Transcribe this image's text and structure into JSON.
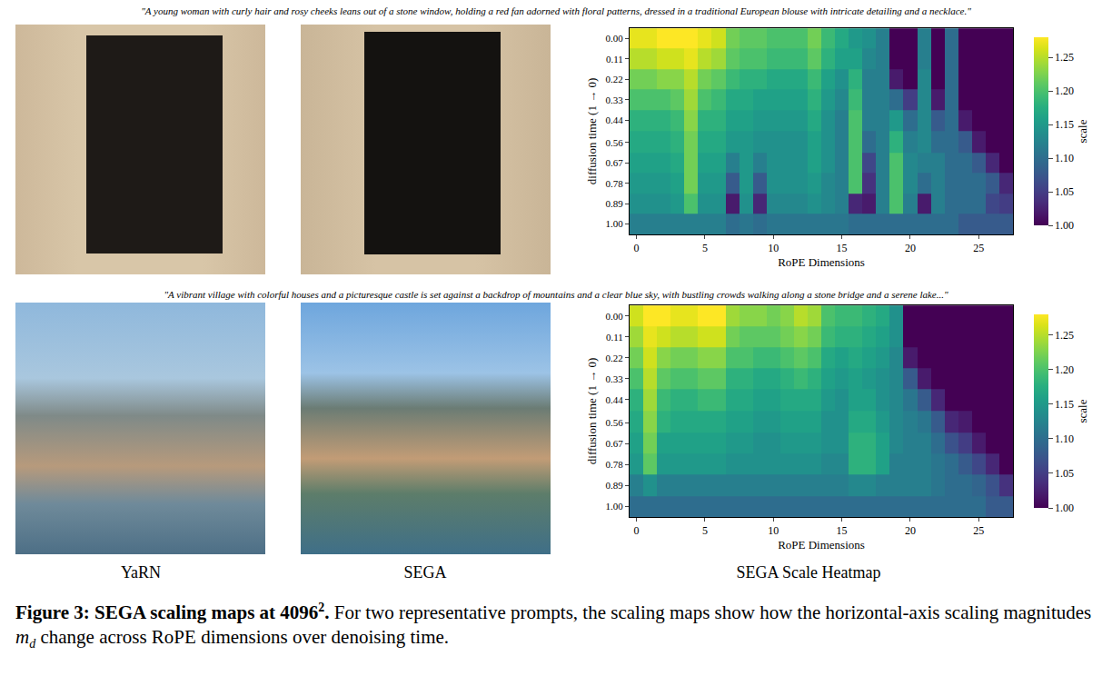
{
  "prompts": [
    "\"A young woman with curly hair and rosy cheeks leans out of a stone window, holding a red fan adorned with floral patterns, dressed in a traditional European blouse with intricate detailing and a necklace.\"",
    "\"A vibrant village with colorful houses and a picturesque castle is set against a backdrop of mountains and a clear blue sky, with bustling crowds walking along a stone bridge and a serene lake...\""
  ],
  "panel_labels": [
    "YaRN",
    "SEGA",
    "SEGA Scale Heatmap"
  ],
  "caption": {
    "label": "Figure 3:",
    "bold": "SEGA scaling maps at 4096",
    "bold_sup": "2",
    "bold_end": ".",
    "text_before": "For two representative prompts, the scaling maps show how the horizontal-axis scaling magnitudes",
    "math": "m",
    "math_sub": "d",
    "text_after": "change across RoPE dimensions over denoising time."
  },
  "chart_data": [
    {
      "type": "heatmap",
      "color": "Viridis",
      "xlabel": "RoPE Dimensions",
      "ylabel": "diffusion time (1 → 0)",
      "x": [
        0,
        1,
        2,
        3,
        4,
        5,
        6,
        7,
        8,
        9,
        10,
        11,
        12,
        13,
        14,
        15,
        16,
        17,
        18,
        19,
        20,
        21,
        22,
        23,
        24,
        25,
        26,
        27
      ],
      "y": [
        0,
        0.11,
        0.22,
        0.33,
        0.44,
        0.56,
        0.67,
        0.78,
        0.89,
        1
      ],
      "xlim": [
        -0.5,
        27.5
      ],
      "ylim": [
        1.056,
        -0.056
      ],
      "xticks": [
        0,
        5,
        10,
        15,
        20,
        25
      ],
      "yticks": [
        {
          "value": 0,
          "label": "0.00"
        },
        0.11,
        0.22,
        0.33,
        0.44,
        0.56,
        0.67,
        0.78,
        0.89,
        {
          "value": 1,
          "label": "1.00"
        }
      ],
      "zlim": [
        1.0,
        1.28
      ],
      "zticks": [
        {
          "value": 1,
          "label": "1.00"
        },
        1.05,
        {
          "value": 1.1,
          "label": "1.10"
        },
        1.15,
        {
          "value": 1.2,
          "label": "1.20"
        },
        1.25
      ],
      "colorbar_title": "scale",
      "values": [
        [
          1.27,
          1.27,
          1.28,
          1.28,
          1.28,
          1.27,
          1.26,
          1.22,
          1.21,
          1.21,
          1.2,
          1.2,
          1.2,
          1.22,
          1.19,
          1.17,
          1.15,
          1.14,
          1.12,
          1.0,
          1.0,
          1.12,
          1.0,
          1.1,
          1.0,
          1.0,
          1.0,
          1.0
        ],
        [
          1.25,
          1.25,
          1.26,
          1.26,
          1.27,
          1.25,
          1.24,
          1.21,
          1.2,
          1.2,
          1.19,
          1.19,
          1.19,
          1.21,
          1.18,
          1.16,
          1.16,
          1.13,
          1.12,
          1.0,
          1.0,
          1.12,
          1.0,
          1.1,
          1.0,
          1.0,
          1.0,
          1.0
        ],
        [
          1.22,
          1.22,
          1.23,
          1.23,
          1.25,
          1.22,
          1.21,
          1.19,
          1.18,
          1.18,
          1.17,
          1.17,
          1.17,
          1.19,
          1.16,
          1.14,
          1.18,
          1.12,
          1.12,
          1.02,
          1.0,
          1.13,
          1.0,
          1.1,
          1.0,
          1.0,
          1.0,
          1.0
        ],
        [
          1.2,
          1.2,
          1.2,
          1.21,
          1.24,
          1.2,
          1.19,
          1.17,
          1.17,
          1.16,
          1.16,
          1.16,
          1.16,
          1.18,
          1.15,
          1.13,
          1.19,
          1.12,
          1.12,
          1.1,
          1.05,
          1.13,
          1.02,
          1.1,
          1.0,
          1.0,
          1.0,
          1.0
        ],
        [
          1.18,
          1.18,
          1.18,
          1.19,
          1.23,
          1.18,
          1.18,
          1.16,
          1.16,
          1.15,
          1.15,
          1.15,
          1.15,
          1.17,
          1.14,
          1.12,
          1.2,
          1.12,
          1.12,
          1.15,
          1.1,
          1.13,
          1.08,
          1.1,
          1.02,
          1.0,
          1.0,
          1.0
        ],
        [
          1.17,
          1.17,
          1.17,
          1.18,
          1.22,
          1.17,
          1.17,
          1.15,
          1.15,
          1.14,
          1.14,
          1.14,
          1.14,
          1.16,
          1.14,
          1.12,
          1.2,
          1.1,
          1.12,
          1.18,
          1.12,
          1.13,
          1.1,
          1.1,
          1.08,
          1.02,
          1.0,
          1.0
        ],
        [
          1.16,
          1.16,
          1.16,
          1.17,
          1.22,
          1.16,
          1.16,
          1.12,
          1.15,
          1.12,
          1.14,
          1.14,
          1.14,
          1.16,
          1.14,
          1.12,
          1.2,
          1.06,
          1.12,
          1.2,
          1.13,
          1.12,
          1.12,
          1.1,
          1.1,
          1.08,
          1.03,
          1.0
        ],
        [
          1.15,
          1.15,
          1.15,
          1.16,
          1.22,
          1.15,
          1.15,
          1.08,
          1.15,
          1.08,
          1.14,
          1.14,
          1.14,
          1.15,
          1.13,
          1.12,
          1.2,
          1.04,
          1.12,
          1.2,
          1.13,
          1.1,
          1.12,
          1.1,
          1.1,
          1.1,
          1.08,
          1.03
        ],
        [
          1.14,
          1.14,
          1.14,
          1.15,
          1.2,
          1.14,
          1.14,
          1.02,
          1.14,
          1.03,
          1.13,
          1.13,
          1.13,
          1.14,
          1.13,
          1.12,
          1.03,
          1.02,
          1.12,
          1.2,
          1.12,
          1.02,
          1.12,
          1.1,
          1.1,
          1.1,
          1.06,
          1.05
        ],
        [
          1.12,
          1.12,
          1.12,
          1.12,
          1.12,
          1.12,
          1.12,
          1.1,
          1.11,
          1.1,
          1.11,
          1.11,
          1.11,
          1.11,
          1.11,
          1.11,
          1.1,
          1.1,
          1.1,
          1.1,
          1.1,
          1.1,
          1.1,
          1.1,
          1.08,
          1.08,
          1.08,
          1.08
        ]
      ]
    },
    {
      "type": "heatmap",
      "color": "Viridis",
      "xlabel": "RoPE Dimensions",
      "ylabel": "diffusion time (1 → 0)",
      "x": [
        0,
        1,
        2,
        3,
        4,
        5,
        6,
        7,
        8,
        9,
        10,
        11,
        12,
        13,
        14,
        15,
        16,
        17,
        18,
        19,
        20,
        21,
        22,
        23,
        24,
        25,
        26,
        27
      ],
      "y": [
        0,
        0.11,
        0.22,
        0.33,
        0.44,
        0.56,
        0.67,
        0.78,
        0.89,
        1
      ],
      "xlim": [
        -0.5,
        27.5
      ],
      "ylim": [
        1.056,
        -0.056
      ],
      "xticks": [
        0,
        5,
        10,
        15,
        20,
        25
      ],
      "yticks": [
        {
          "value": 0,
          "label": "0.00"
        },
        0.11,
        0.22,
        0.33,
        0.44,
        0.56,
        0.67,
        0.78,
        0.89,
        {
          "value": 1,
          "label": "1.00"
        }
      ],
      "zlim": [
        1.0,
        1.28
      ],
      "zticks": [
        {
          "value": 1,
          "label": "1.00"
        },
        1.05,
        {
          "value": 1.1,
          "label": "1.10"
        },
        1.15,
        {
          "value": 1.2,
          "label": "1.20"
        },
        1.25
      ],
      "colorbar_title": "scale",
      "values": [
        [
          1.26,
          1.28,
          1.28,
          1.27,
          1.27,
          1.28,
          1.28,
          1.24,
          1.23,
          1.23,
          1.22,
          1.23,
          1.25,
          1.24,
          1.2,
          1.19,
          1.19,
          1.18,
          1.17,
          1.14,
          1.0,
          1.0,
          1.0,
          1.0,
          1.0,
          1.0,
          1.0,
          1.0
        ],
        [
          1.24,
          1.27,
          1.26,
          1.25,
          1.25,
          1.26,
          1.26,
          1.22,
          1.21,
          1.21,
          1.21,
          1.22,
          1.23,
          1.22,
          1.19,
          1.18,
          1.18,
          1.17,
          1.16,
          1.14,
          1.0,
          1.0,
          1.0,
          1.0,
          1.0,
          1.0,
          1.0,
          1.0
        ],
        [
          1.22,
          1.26,
          1.23,
          1.22,
          1.22,
          1.23,
          1.23,
          1.2,
          1.2,
          1.19,
          1.19,
          1.2,
          1.21,
          1.2,
          1.17,
          1.16,
          1.17,
          1.16,
          1.15,
          1.13,
          1.02,
          1.0,
          1.0,
          1.0,
          1.0,
          1.0,
          1.0,
          1.0
        ],
        [
          1.2,
          1.25,
          1.21,
          1.2,
          1.2,
          1.21,
          1.21,
          1.18,
          1.18,
          1.17,
          1.17,
          1.18,
          1.19,
          1.18,
          1.16,
          1.15,
          1.16,
          1.15,
          1.14,
          1.13,
          1.08,
          1.02,
          1.0,
          1.0,
          1.0,
          1.0,
          1.0,
          1.0
        ],
        [
          1.18,
          1.24,
          1.19,
          1.18,
          1.18,
          1.19,
          1.19,
          1.17,
          1.17,
          1.16,
          1.16,
          1.17,
          1.17,
          1.17,
          1.15,
          1.14,
          1.16,
          1.16,
          1.14,
          1.13,
          1.11,
          1.08,
          1.03,
          1.0,
          1.0,
          1.0,
          1.0,
          1.0
        ],
        [
          1.17,
          1.23,
          1.18,
          1.17,
          1.17,
          1.17,
          1.17,
          1.16,
          1.16,
          1.15,
          1.15,
          1.16,
          1.16,
          1.16,
          1.14,
          1.14,
          1.17,
          1.17,
          1.15,
          1.13,
          1.12,
          1.11,
          1.08,
          1.03,
          1.02,
          1.0,
          1.0,
          1.0
        ],
        [
          1.16,
          1.22,
          1.16,
          1.16,
          1.16,
          1.16,
          1.16,
          1.15,
          1.15,
          1.14,
          1.14,
          1.15,
          1.15,
          1.15,
          1.14,
          1.14,
          1.18,
          1.18,
          1.16,
          1.13,
          1.12,
          1.12,
          1.1,
          1.07,
          1.05,
          1.02,
          1.0,
          1.0
        ],
        [
          1.15,
          1.21,
          1.15,
          1.15,
          1.15,
          1.15,
          1.15,
          1.14,
          1.14,
          1.14,
          1.14,
          1.14,
          1.14,
          1.14,
          1.13,
          1.13,
          1.18,
          1.18,
          1.16,
          1.12,
          1.12,
          1.12,
          1.11,
          1.1,
          1.08,
          1.06,
          1.03,
          1.0
        ],
        [
          1.12,
          1.14,
          1.12,
          1.12,
          1.12,
          1.12,
          1.12,
          1.12,
          1.12,
          1.12,
          1.12,
          1.12,
          1.12,
          1.12,
          1.12,
          1.12,
          1.13,
          1.13,
          1.12,
          1.12,
          1.12,
          1.12,
          1.11,
          1.1,
          1.1,
          1.09,
          1.07,
          1.04
        ],
        [
          1.1,
          1.1,
          1.1,
          1.1,
          1.1,
          1.1,
          1.1,
          1.1,
          1.1,
          1.1,
          1.1,
          1.1,
          1.1,
          1.1,
          1.1,
          1.1,
          1.1,
          1.1,
          1.1,
          1.1,
          1.1,
          1.1,
          1.1,
          1.1,
          1.1,
          1.1,
          1.08,
          1.08
        ]
      ]
    }
  ]
}
